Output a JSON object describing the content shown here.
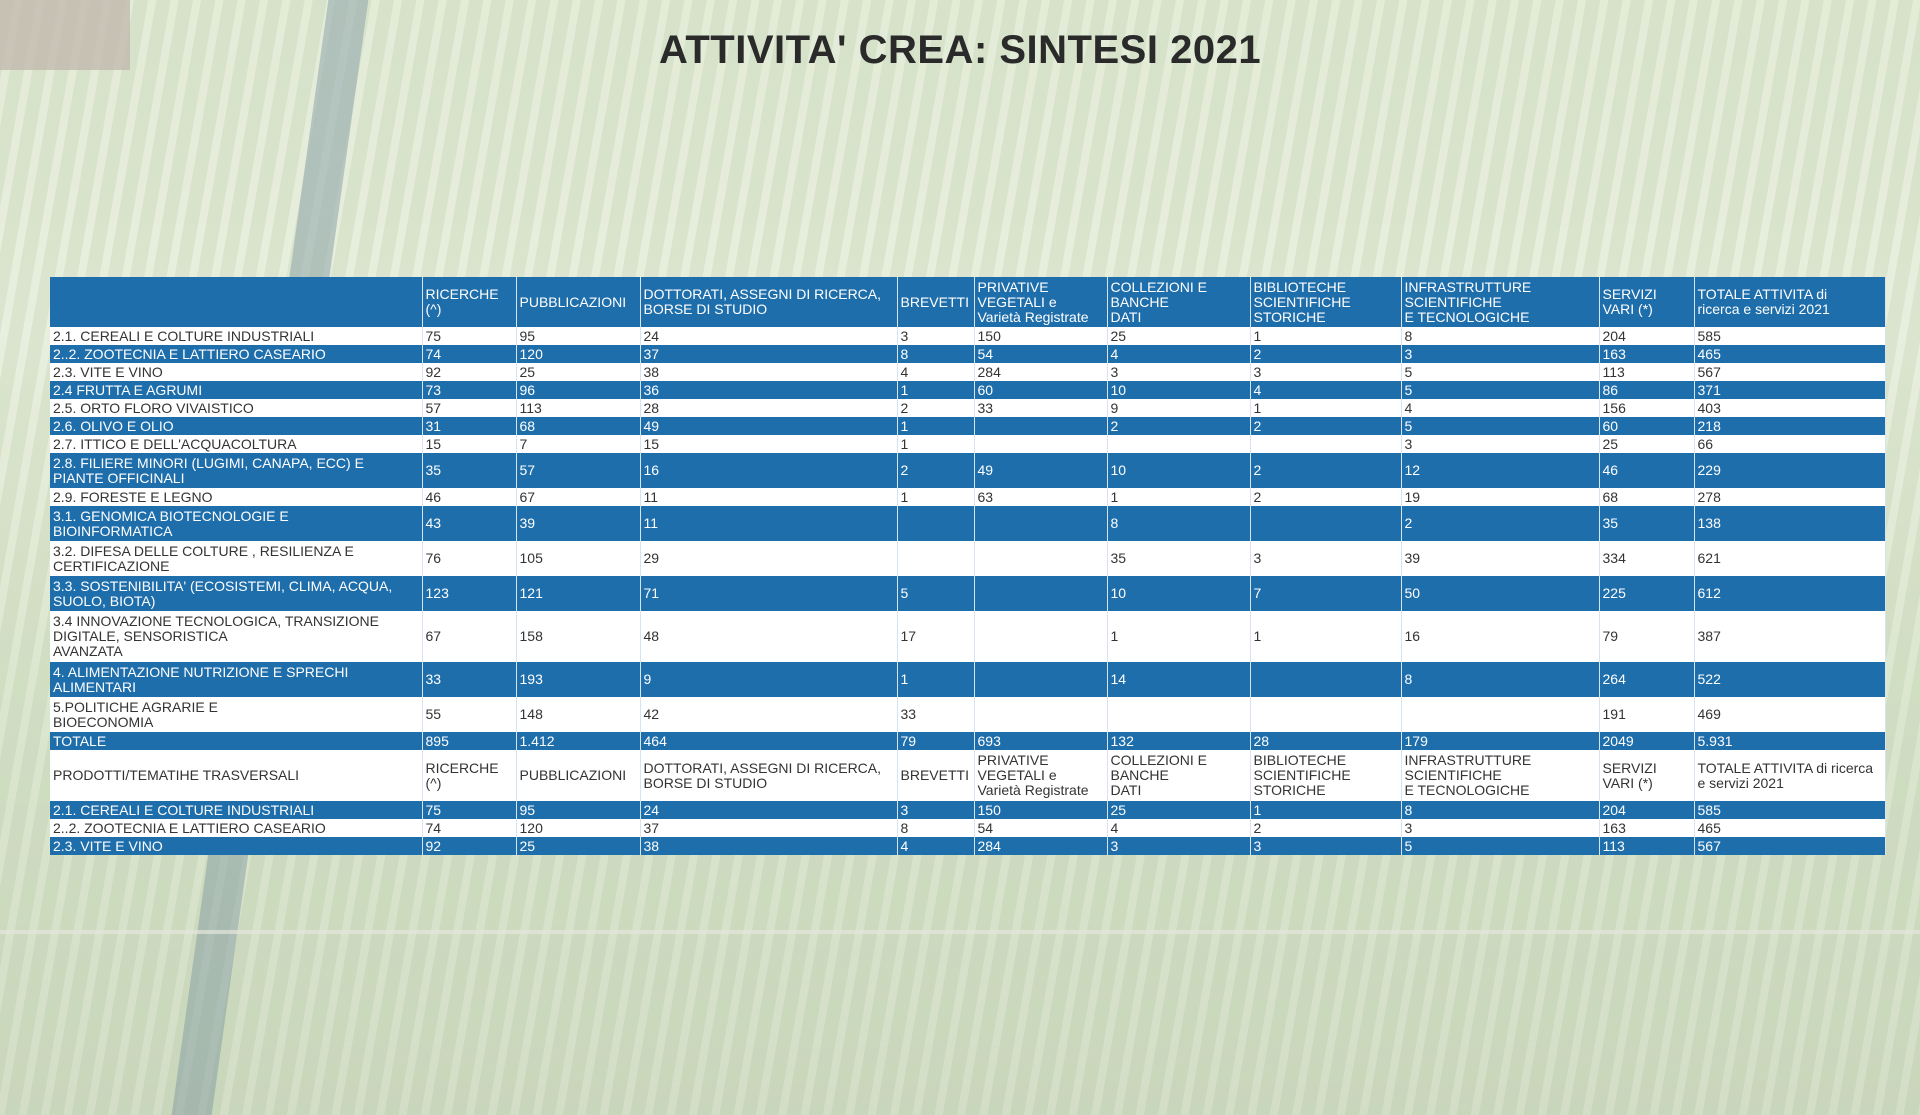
{
  "title": "ATTIVITA' CREA: SINTESI 2021",
  "table": {
    "header1": [
      "",
      "RICERCHE\n(^)",
      "PUBBLICAZIONI",
      "DOTTORATI, ASSEGNI DI RICERCA,\nBORSE DI STUDIO",
      "BREVETTI",
      "PRIVATIVE\nVEGETALI  e\nVarietà Registrate",
      " COLLEZIONI E\nBANCHE\nDATI",
      " BIBLIOTECHE\nSCIENTIFICHE\nSTORICHE",
      "INFRASTRUTTURE\nSCIENTIFICHE\nE TECNOLOGICHE",
      "SERVIZI\nVARI  (*)",
      "TOTALE ATTIVITA di\nricerca e servizi 2021"
    ],
    "rows": [
      [
        "2.1. CEREALI E COLTURE INDUSTRIALI",
        "75",
        " 95",
        "24",
        "3",
        "150",
        "25",
        "1",
        "8",
        "204",
        "585"
      ],
      [
        "2..2. ZOOTECNIA E LATTIERO CASEARIO",
        "74",
        "120",
        "37",
        "8",
        "54",
        "4",
        "2",
        "3",
        "163",
        "465"
      ],
      [
        "2.3. VITE E VINO",
        "92",
        "25",
        "38",
        "4",
        "284",
        "3",
        "3",
        "5",
        "113",
        "567"
      ],
      [
        "2.4 FRUTTA E AGRUMI",
        "73",
        "96",
        "36",
        "1",
        "60",
        "10",
        "4",
        "5",
        "86",
        "371"
      ],
      [
        "2.5. ORTO FLORO VIVAISTICO",
        "57",
        "113",
        "28",
        "2",
        "33",
        "9",
        "1",
        "4",
        "156",
        "403"
      ],
      [
        "2.6. OLIVO E OLIO",
        "31",
        "68",
        "49",
        "1",
        "",
        "2",
        "2",
        "5",
        "60",
        "218"
      ],
      [
        "2.7. ITTICO E DELL'ACQUACOLTURA",
        "15",
        "7",
        "15",
        "1",
        "",
        "",
        "",
        "3",
        "25",
        "66"
      ],
      [
        "2.8. FILIERE MINORI (LUGIMI, CANAPA, ECC) E\nPIANTE OFFICINALI",
        "35",
        "57",
        "16",
        "2",
        "49",
        "10",
        "2",
        "12",
        "46",
        "229"
      ],
      [
        "2.9. FORESTE E LEGNO",
        "46",
        "67",
        "11",
        "1",
        "63",
        "1",
        "2",
        "19",
        "68",
        "278"
      ],
      [
        "3.1. GENOMICA BIOTECNOLOGIE E\nBIOINFORMATICA",
        "43",
        "39",
        "11",
        "",
        "",
        "8",
        "",
        "2",
        "35",
        "138"
      ],
      [
        "3.2. DIFESA DELLE COLTURE , RESILIENZA E\nCERTIFICAZIONE",
        "76",
        "105",
        "29",
        "",
        "",
        "35",
        "3",
        "39",
        "334",
        "621"
      ],
      [
        "3.3. SOSTENIBILITA' (ECOSISTEMI, CLIMA, ACQUA,\nSUOLO, BIOTA)",
        "123",
        "121",
        "71",
        "5",
        "",
        "10",
        "7",
        "50",
        "225",
        "612"
      ],
      [
        "3.4 INNOVAZIONE TECNOLOGICA, TRANSIZIONE\nDIGITALE, SENSORISTICA\nAVANZATA",
        "67",
        "158",
        "48",
        "17",
        "",
        "1",
        "1",
        "16",
        "79",
        "387"
      ],
      [
        "4. ALIMENTAZIONE NUTRIZIONE E SPRECHI\nALIMENTARI",
        "33",
        "193",
        "9",
        "1",
        "",
        "14",
        "",
        "8",
        "264",
        "522"
      ],
      [
        "5.POLITICHE AGRARIE  E\nBIOECONOMIA",
        "55",
        "148",
        "42",
        "33",
        "",
        "",
        "",
        "",
        "191",
        "469"
      ],
      [
        "TOTALE",
        "895",
        "1.412",
        "464",
        "79",
        "693",
        "132",
        "28",
        "179",
        "2049",
        "5.931"
      ]
    ],
    "header2": [
      " PRODOTTI/TEMATIHE TRASVERSALI",
      "RICERCHE\n(^)",
      "PUBBLICAZIONI",
      "DOTTORATI, ASSEGNI DI RICERCA,\nBORSE DI STUDIO",
      "BREVETTI",
      "PRIVATIVE\nVEGETALI  e\nVarietà Registrate",
      " COLLEZIONI E\nBANCHE\nDATI",
      " BIBLIOTECHE\nSCIENTIFICHE\nSTORICHE",
      "INFRASTRUTTURE\nSCIENTIFICHE\nE TECNOLOGICHE",
      "SERVIZI\nVARI  (*)",
      "TOTALE ATTIVITA di ricerca\ne servizi 2021"
    ],
    "rows2": [
      [
        "2.1. CEREALI E COLTURE INDUSTRIALI",
        "75",
        " 95",
        "24",
        "3",
        "150",
        "25",
        "1",
        "8",
        "204",
        "585"
      ],
      [
        "2..2. ZOOTECNIA E LATTIERO CASEARIO",
        "74",
        "120",
        "37",
        "8",
        "54",
        "4",
        "2",
        "3",
        "163",
        "465"
      ],
      [
        "2.3. VITE E VINO",
        "92",
        "25",
        "38",
        "4",
        "284",
        "3",
        "3",
        "5",
        "113",
        "567"
      ]
    ]
  }
}
